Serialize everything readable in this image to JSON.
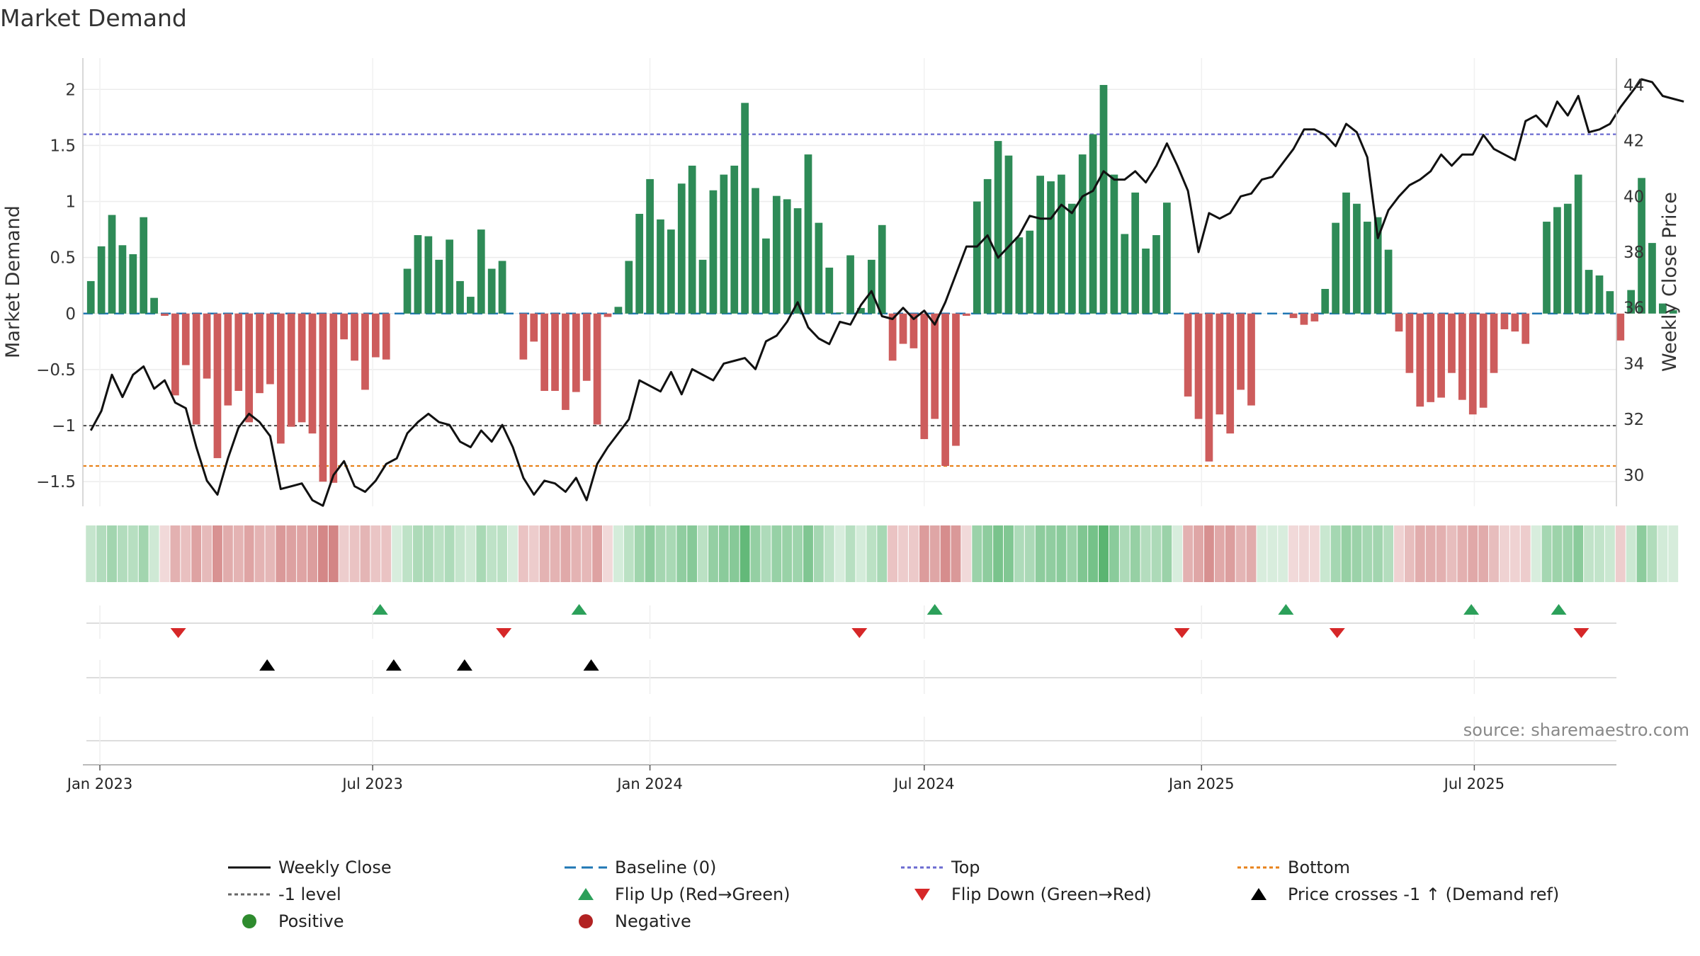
{
  "chart_data": {
    "type": "bar+line",
    "title": "Market Demand",
    "ylabel_left": "Market Demand",
    "ylabel_right": "Weekly Close Price",
    "ylim_left": [
      -1.72,
      2.28
    ],
    "ylim_right": [
      28.88,
      44.96
    ],
    "yticks_left": [
      -1.5,
      -1,
      -0.5,
      0,
      0.5,
      1,
      1.5,
      2
    ],
    "yticks_left_labels": [
      "−1.5",
      "−1",
      "−0.5",
      "0",
      "0.5",
      "1",
      "1.5",
      "2"
    ],
    "yticks_right": [
      30,
      32,
      34,
      36,
      38,
      40,
      42,
      44
    ],
    "yticks_right_labels": [
      "30",
      "32",
      "34",
      "36",
      "38",
      "40",
      "42",
      "44"
    ],
    "x_start_date": "2023-01-01",
    "x_end_date": "2025-09-30",
    "week_start_date": "2022-12-26",
    "xticks": [
      {
        "date": "2023-01-01",
        "label": "Jan 2023"
      },
      {
        "date": "2023-07-01",
        "label": "Jul 2023"
      },
      {
        "date": "2024-01-01",
        "label": "Jan 2024"
      },
      {
        "date": "2024-07-01",
        "label": "Jul 2024"
      },
      {
        "date": "2025-01-01",
        "label": "Jan 2025"
      },
      {
        "date": "2025-07-01",
        "label": "Jul 2025"
      }
    ],
    "reference_lines": [
      {
        "name": "Top",
        "value": 1.6,
        "color": "#6a6ad0",
        "style": "dotted"
      },
      {
        "name": "-1 level",
        "value": -1.0,
        "color": "#555555",
        "style": "dotted"
      },
      {
        "name": "Bottom",
        "value": -1.36,
        "color": "#e8821a",
        "style": "dotted"
      },
      {
        "name": "Baseline (0)",
        "value": 0,
        "color": "#1f77b4",
        "style": "dashed"
      }
    ],
    "demand_values": [
      0.29,
      0.6,
      0.88,
      0.61,
      0.53,
      0.86,
      0.14,
      -0.02,
      -0.73,
      -0.46,
      -0.99,
      -0.58,
      -1.29,
      -0.82,
      -0.69,
      -0.97,
      -0.71,
      -0.63,
      -1.16,
      -1.01,
      -0.97,
      -1.07,
      -1.5,
      -1.51,
      -0.23,
      -0.42,
      -0.68,
      -0.39,
      -0.41,
      0,
      0.4,
      0.7,
      0.69,
      0.48,
      0.66,
      0.29,
      0.15,
      0.75,
      0.4,
      0.47,
      0,
      -0.41,
      -0.25,
      -0.69,
      -0.69,
      -0.86,
      -0.7,
      -0.6,
      -0.99,
      -0.03,
      0.06,
      0.47,
      0.89,
      1.2,
      0.84,
      0.75,
      1.16,
      1.32,
      0.48,
      1.1,
      1.24,
      1.32,
      1.88,
      1.12,
      0.67,
      1.05,
      1.02,
      0.94,
      1.42,
      0.81,
      0.41,
      0.01,
      0.52,
      0.05,
      0.48,
      0.79,
      -0.42,
      -0.27,
      -0.31,
      -1.12,
      -0.94,
      -1.36,
      -1.18,
      -0.02,
      1.0,
      1.2,
      1.54,
      1.41,
      0.68,
      0.74,
      1.23,
      1.18,
      1.24,
      0.98,
      1.42,
      1.6,
      2.04,
      1.24,
      0.71,
      1.08,
      0.58,
      0.7,
      0.99,
      0,
      -0.74,
      -0.94,
      -1.32,
      -0.9,
      -1.07,
      -0.68,
      -0.82,
      0,
      0,
      0,
      -0.04,
      -0.1,
      -0.07,
      0.22,
      0.81,
      1.08,
      0.98,
      0.82,
      0.86,
      0.57,
      -0.16,
      -0.53,
      -0.83,
      -0.79,
      -0.75,
      -0.53,
      -0.77,
      -0.9,
      -0.84,
      -0.53,
      -0.14,
      -0.16,
      -0.27,
      0,
      0.82,
      0.95,
      0.98,
      1.24,
      0.39,
      0.34,
      0.2,
      -0.24,
      0.21,
      1.21,
      0.63,
      0.09,
      0.03
    ],
    "price_values": [
      31.6,
      32.3,
      33.6,
      32.8,
      33.6,
      33.9,
      33.1,
      33.4,
      32.6,
      32.4,
      31.0,
      29.8,
      29.3,
      30.6,
      31.7,
      32.2,
      31.9,
      31.4,
      29.5,
      29.6,
      29.7,
      29.1,
      28.9,
      30.0,
      30.5,
      29.6,
      29.4,
      29.8,
      30.4,
      30.6,
      31.5,
      31.9,
      32.2,
      31.9,
      31.8,
      31.2,
      31.0,
      31.6,
      31.2,
      31.8,
      31.0,
      29.9,
      29.3,
      29.8,
      29.7,
      29.4,
      29.9,
      29.1,
      30.4,
      31.0,
      31.5,
      32.0,
      33.4,
      33.2,
      33.0,
      33.7,
      32.9,
      33.8,
      33.6,
      33.4,
      34.0,
      34.1,
      34.2,
      33.8,
      34.8,
      35.0,
      35.5,
      36.2,
      35.3,
      34.9,
      34.7,
      35.5,
      35.4,
      36.1,
      36.6,
      35.7,
      35.6,
      36.0,
      35.6,
      35.9,
      35.4,
      36.2,
      37.2,
      38.2,
      38.2,
      38.6,
      37.8,
      38.2,
      38.6,
      39.3,
      39.2,
      39.2,
      39.7,
      39.4,
      40.0,
      40.2,
      40.9,
      40.6,
      40.6,
      40.9,
      40.5,
      41.1,
      41.9,
      41.1,
      40.2,
      38.0,
      39.4,
      39.2,
      39.4,
      40.0,
      40.1,
      40.6,
      40.7,
      41.2,
      41.7,
      42.4,
      42.4,
      42.2,
      41.8,
      42.6,
      42.3,
      41.4,
      38.5,
      39.5,
      40.0,
      40.4,
      40.6,
      40.9,
      41.5,
      41.1,
      41.5,
      41.5,
      42.2,
      41.7,
      41.5,
      41.3,
      42.7,
      42.9,
      42.5,
      43.4,
      42.9,
      43.6,
      42.3,
      42.4,
      42.6,
      43.2,
      43.7,
      44.2,
      44.1,
      43.6,
      43.5,
      43.4
    ],
    "flip_up_dates": [
      "2023-07-06",
      "2023-11-15",
      "2024-07-08",
      "2025-02-26",
      "2025-06-29",
      "2025-08-26"
    ],
    "flip_down_dates": [
      "2023-02-22",
      "2023-09-26",
      "2024-05-19",
      "2024-12-19",
      "2025-04-01",
      "2025-09-10"
    ],
    "price_cross_dates": [
      "2023-04-22",
      "2023-07-15",
      "2023-08-31",
      "2023-11-23"
    ],
    "legend": [
      {
        "label": "Weekly Close",
        "marker": "line",
        "color": "#111111"
      },
      {
        "label": "Baseline (0)",
        "marker": "dashed",
        "color": "#1f77b4"
      },
      {
        "label": "Top",
        "marker": "dotted",
        "color": "#6a6ad0"
      },
      {
        "label": "Bottom",
        "marker": "dotted",
        "color": "#e8821a"
      },
      {
        "label": "-1 level",
        "marker": "dotted",
        "color": "#666666"
      },
      {
        "label": "Flip Up (Red→Green)",
        "marker": "triangle-up",
        "color": "#2ca05a"
      },
      {
        "label": "Flip Down (Green→Red)",
        "marker": "triangle-down",
        "color": "#d62728"
      },
      {
        "label": "Price crosses -1 ↑ (Demand ref)",
        "marker": "triangle-up",
        "color": "#000000"
      },
      {
        "label": "Positive",
        "marker": "circle",
        "color": "#2e8b2e"
      },
      {
        "label": "Negative",
        "marker": "circle",
        "color": "#b22222"
      }
    ],
    "legend_placement": "bottom",
    "source_note": "source: sharemaestro.com",
    "colors": {
      "positive_bar": "#2e8b57",
      "negative_bar": "#cd5c5c",
      "price_line": "#111111",
      "heat_positive": "#4caf65",
      "heat_negative": "#c45a5a"
    }
  }
}
